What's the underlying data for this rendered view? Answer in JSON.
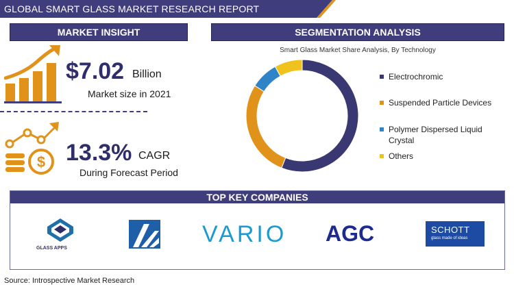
{
  "header": {
    "title": "GLOBAL SMART GLASS MARKET RESEARCH REPORT"
  },
  "market_insight": {
    "heading": "MARKET INSIGHT",
    "market_value": "$7.02",
    "market_unit": "Billion",
    "market_caption": "Market size in 2021",
    "cagr_value": "13.3%",
    "cagr_unit": "CAGR",
    "cagr_caption": "During Forecast Period"
  },
  "segmentation": {
    "heading": "SEGMENTATION ANALYSIS"
  },
  "chart_data": {
    "type": "pie",
    "title": "Smart Glass Market Share Analysis, By Technology",
    "categories": [
      "Electrochromic",
      "Suspended Particle Devices",
      "Polymer Dispersed Liquid Crystal",
      "Others"
    ],
    "values": [
      56,
      28,
      8,
      8
    ],
    "colors": [
      "#3a3872",
      "#e1921b",
      "#2f84c8",
      "#f0c21e"
    ],
    "legend_position": "right"
  },
  "companies": {
    "heading": "TOP KEY COMPANIES",
    "glass_apps_name": "GLASS APPS",
    "vario_name": "VARIO",
    "agc_name": "AGC",
    "schott_name": "SCHOTT",
    "schott_tagline": "glass made of ideas"
  },
  "footer": {
    "source": "Source: Introspective Market Research"
  },
  "colors": {
    "brand": "#3f3d7c",
    "accent": "#e1921b"
  }
}
